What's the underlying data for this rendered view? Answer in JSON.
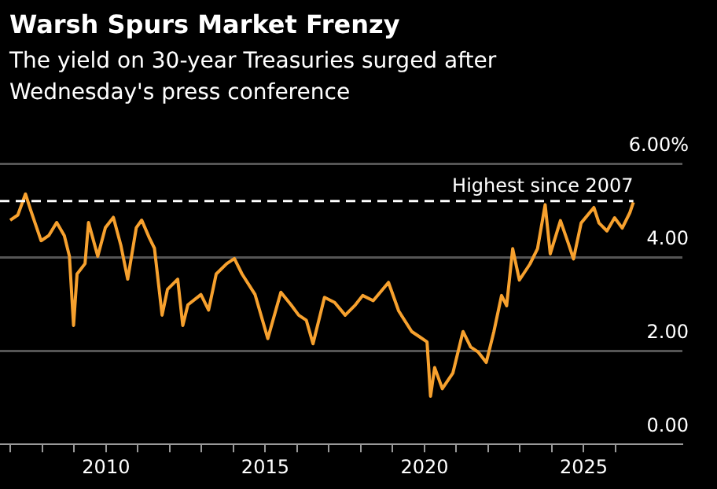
{
  "chart_data": {
    "type": "line",
    "title": "Warsh Spurs Market Frenzy",
    "subtitle": "The yield on 30-year Treasuries surged after Wednesday's press conference",
    "x": [
      2006.99,
      2007.23,
      2007.47,
      2007.63,
      2007.96,
      2008.2,
      2008.45,
      2008.69,
      2008.85,
      2008.98,
      2009.09,
      2009.34,
      2009.45,
      2009.74,
      2009.98,
      2010.23,
      2010.47,
      2010.68,
      2010.95,
      2011.12,
      2011.36,
      2011.52,
      2011.76,
      2011.93,
      2012.25,
      2012.41,
      2012.57,
      2012.98,
      2013.22,
      2013.46,
      2013.79,
      2014.03,
      2014.27,
      2014.68,
      2015.08,
      2015.49,
      2015.81,
      2016.05,
      2016.29,
      2016.5,
      2016.86,
      2017.18,
      2017.51,
      2017.83,
      2018.06,
      2018.39,
      2018.87,
      2019.19,
      2019.6,
      2019.84,
      2020.08,
      2020.19,
      2020.32,
      2020.56,
      2020.89,
      2021.21,
      2021.45,
      2021.69,
      2021.94,
      2022.18,
      2022.42,
      2022.58,
      2022.77,
      2022.98,
      2023.31,
      2023.55,
      2023.79,
      2023.95,
      2024.27,
      2024.52,
      2024.68,
      2024.92,
      2025.32,
      2025.48,
      2025.73,
      2025.97,
      2026.21,
      2026.45,
      2026.56
    ],
    "series": [
      {
        "color": "#f7a12e",
        "values": [
          4.79,
          4.9,
          5.35,
          5.01,
          4.35,
          4.46,
          4.74,
          4.46,
          4.02,
          2.54,
          3.64,
          3.86,
          4.74,
          4.02,
          4.63,
          4.85,
          4.24,
          3.53,
          4.63,
          4.79,
          4.41,
          4.19,
          2.76,
          3.31,
          3.53,
          2.54,
          2.98,
          3.2,
          2.87,
          3.64,
          3.86,
          3.97,
          3.64,
          3.2,
          2.26,
          3.25,
          2.98,
          2.76,
          2.65,
          2.15,
          3.14,
          3.03,
          2.76,
          2.98,
          3.18,
          3.07,
          3.46,
          2.85,
          2.41,
          2.3,
          2.19,
          1.03,
          1.64,
          1.19,
          1.52,
          2.41,
          2.08,
          1.97,
          1.75,
          2.41,
          3.18,
          2.96,
          4.18,
          3.51,
          3.85,
          4.18,
          5.12,
          4.07,
          4.78,
          4.29,
          3.96,
          4.73,
          5.06,
          4.73,
          4.56,
          4.84,
          4.62,
          4.95,
          5.17
        ]
      }
    ],
    "xlim": [
      2006.67,
      2028.1
    ],
    "xticks": [
      {
        "value": 2007,
        "label": null
      },
      {
        "value": 2008,
        "label": null
      },
      {
        "value": 2009,
        "label": null
      },
      2010,
      {
        "value": 2011,
        "label": null
      },
      {
        "value": 2012,
        "label": null
      },
      {
        "value": 2013,
        "label": null
      },
      {
        "value": 2014,
        "label": null
      },
      2015,
      {
        "value": 2016,
        "label": null
      },
      {
        "value": 2017,
        "label": null
      },
      {
        "value": 2018,
        "label": null
      },
      {
        "value": 2019,
        "label": null
      },
      2020,
      {
        "value": 2021,
        "label": null
      },
      {
        "value": 2022,
        "label": null
      },
      {
        "value": 2023,
        "label": null
      },
      {
        "value": 2024,
        "label": null
      },
      2025,
      {
        "value": 2026,
        "label": null
      }
    ],
    "ylim": [
      0,
      6
    ],
    "yticks": [
      {
        "value": 0,
        "label": "0.00"
      },
      {
        "value": 2,
        "label": "2.00"
      },
      {
        "value": 4,
        "label": "4.00"
      },
      {
        "value": 6,
        "label": "6.00%"
      }
    ],
    "ref_lines": [
      {
        "axis": "y",
        "value": 5.2,
        "label": "Highest since 2007",
        "color": "#ffffff",
        "line_style": "dashed"
      }
    ],
    "grid": "y",
    "legend": false,
    "marker": "none",
    "line_style": "solid"
  }
}
